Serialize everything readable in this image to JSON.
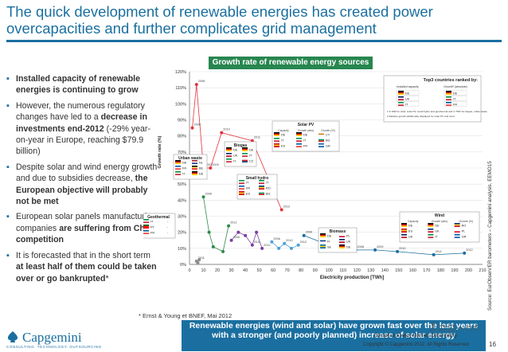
{
  "title": "The quick development of renewable energies has created power overcapacities and further complicates grid management",
  "bullets": [
    {
      "pre": "",
      "bold": "Installed capacity of renewable energies is continuing to grow",
      "post": ""
    },
    {
      "pre": "However, the numerous regulatory changes have led to a ",
      "bold": "decrease in investments end-2012",
      "post": " (-29% year-on-year in Europe, reaching $79.9 billion)"
    },
    {
      "pre": "Despite solar and wind energy growth and due to subsidies decrease, ",
      "bold": "the European objective will probably not be met",
      "post": ""
    },
    {
      "pre": "European solar panels manufacturing companies ",
      "bold": "are suffering from China competition",
      "post": ""
    },
    {
      "pre": "It is forecasted that in the short term ",
      "bold": "at least half of them could be taken over or go bankrupted",
      "post": "*"
    }
  ],
  "panel_title": "Growth rate of renewable energy sources",
  "footnote": "* Ernst & Young et BNEF, Mai 2012",
  "conclusion": "Renewable energies (wind and solar) have grown fast over the last years with a stronger (and poorly planned) increase of solar energy",
  "source": "Source: EurObserv'ER barometers – Capgemini analysis, EEMO15",
  "logo": {
    "name": "Capgemini",
    "tagline": "CONSULTING. TECHNOLOGY. OUTSOURCING"
  },
  "observatory": "European Energy Markets Observatory",
  "copyright": "Copyright © Capgemini 2012. All Rights Reserved",
  "page_number": "16",
  "colors": {
    "accent": "#1a6fa0",
    "panel_green": "#27864f"
  },
  "chart_data": {
    "type": "scatter",
    "xlabel": "Electricity production [TWh]",
    "ylabel": "Growth rate (%)",
    "xlim": [
      0,
      210
    ],
    "ylim": [
      0,
      120
    ],
    "x_ticks": [
      0,
      10,
      20,
      30,
      40,
      50,
      60,
      70,
      80,
      90,
      100,
      110,
      120,
      130,
      140,
      150,
      160,
      170,
      180,
      190,
      200,
      210
    ],
    "y_ticks": [
      0,
      10,
      20,
      30,
      40,
      50,
      60,
      70,
      80,
      90,
      100,
      110,
      120
    ],
    "series": [
      {
        "name": "Solar PV",
        "color": "#e5333b",
        "points": [
          {
            "x": 2,
            "y": 85,
            "label": "2006"
          },
          {
            "x": 5,
            "y": 112,
            "label": "2008"
          },
          {
            "x": 10,
            "y": 60,
            "label": "2007"
          },
          {
            "x": 15,
            "y": 60,
            "label": "2009"
          },
          {
            "x": 23,
            "y": 82,
            "label": "2010"
          },
          {
            "x": 45,
            "y": 77,
            "label": "2011"
          },
          {
            "x": 66,
            "y": 34,
            "label": "2012"
          }
        ]
      },
      {
        "name": "Wind",
        "color": "#1a6fa0",
        "points": [
          {
            "x": 82,
            "y": 18,
            "label": "2006"
          },
          {
            "x": 103,
            "y": 11,
            "label": "2007"
          },
          {
            "x": 119,
            "y": 9,
            "label": "2008"
          },
          {
            "x": 133,
            "y": 9,
            "label": "2009"
          },
          {
            "x": 149,
            "y": 8,
            "label": "2010"
          },
          {
            "x": 175,
            "y": 6,
            "label": "2011"
          },
          {
            "x": 197,
            "y": 7,
            "label": "2012"
          }
        ]
      },
      {
        "name": "Biogas",
        "color": "#2d8a4a",
        "points": [
          {
            "x": 10,
            "y": 42,
            "label": "2006"
          },
          {
            "x": 14,
            "y": 20,
            "label": ""
          },
          {
            "x": 17,
            "y": 11,
            "label": ""
          },
          {
            "x": 24,
            "y": 8,
            "label": ""
          },
          {
            "x": 28,
            "y": 24,
            "label": "2012"
          }
        ]
      },
      {
        "name": "Small hydro",
        "color": "#7a3fa0",
        "points": [
          {
            "x": 30,
            "y": 15,
            "label": "2006"
          },
          {
            "x": 35,
            "y": 20,
            "label": ""
          },
          {
            "x": 40,
            "y": 18,
            "label": ""
          },
          {
            "x": 45,
            "y": 12,
            "label": "2011"
          },
          {
            "x": 48,
            "y": 20,
            "label": ""
          },
          {
            "x": 52,
            "y": 10,
            "label": "2012"
          }
        ]
      },
      {
        "name": "Biomass",
        "color": "#4aa0d8",
        "points": [
          {
            "x": 59,
            "y": 14,
            "label": "2006"
          },
          {
            "x": 64,
            "y": 10,
            "label": ""
          },
          {
            "x": 68,
            "y": 13,
            "label": "2010"
          },
          {
            "x": 73,
            "y": 10,
            "label": ""
          },
          {
            "x": 78,
            "y": 12,
            "label": "2012"
          }
        ]
      },
      {
        "name": "Geothermal",
        "color": "#8c8c8c",
        "points": [
          {
            "x": 5,
            "y": 2,
            "label": "2011"
          },
          {
            "x": 6,
            "y": 1,
            "label": ""
          },
          {
            "x": 7,
            "y": 3,
            "label": ""
          }
        ]
      }
    ],
    "callouts": [
      {
        "title": "Solar PV",
        "col_headers": [
          "Capacity",
          "Growth (abs)",
          "Growth (%)"
        ],
        "rows": [
          [
            "DE",
            "DE",
            "CY"
          ],
          [
            "IT",
            "IT",
            "BG"
          ],
          [
            "ES",
            "FR",
            "GR"
          ]
        ]
      },
      {
        "title": "Biogas",
        "rows": [
          [
            "DE",
            "DE"
          ],
          [
            "UK",
            "IT"
          ],
          [
            "IT",
            "CZ"
          ]
        ]
      },
      {
        "title": "Urban waste",
        "rows": [
          [
            "DE",
            "NL"
          ],
          [
            "FR",
            "BE"
          ],
          [
            "IT",
            "DE"
          ]
        ]
      },
      {
        "title": "Small hydro",
        "rows": [
          [
            "IT",
            "IT"
          ],
          [
            "FR",
            "RO"
          ],
          [
            "ES",
            "BG"
          ]
        ]
      },
      {
        "title": "Geothermal",
        "rows": [
          [
            "IT",
            "-"
          ],
          [
            "PT",
            "-"
          ],
          [
            "FR",
            "-"
          ]
        ]
      },
      {
        "title": "Biomass",
        "rows": [
          [
            "DE",
            "PL"
          ],
          [
            "FI",
            "UK"
          ],
          [
            "SE",
            "DE"
          ]
        ]
      },
      {
        "title": "Wind",
        "col_headers": [
          "Capacity",
          "Growth (abs)",
          "Growth (%)"
        ],
        "rows": [
          [
            "DE",
            "DE",
            "RO"
          ],
          [
            "ES",
            "UK",
            "PL"
          ],
          [
            "UK",
            "IT",
            "GR"
          ]
        ]
      }
    ],
    "legend_box": {
      "title": "Top3 countries ranked by:",
      "col1": "Installed capacity",
      "col1_note": "1",
      "col2": "Growth² (absolute)",
      "col2_note": "2",
      "rows": [
        [
          "DE",
          "DE"
        ],
        [
          "UK",
          "IT"
        ],
        [
          "IT",
          "FR"
        ]
      ],
      "notes": [
        "1  In MW for wind, solar PV, small hydro and geothermal and in TWh for biogas, urban waste and biomass",
        "2  Relative growth additionally displayed for solar PV and wind"
      ]
    }
  }
}
